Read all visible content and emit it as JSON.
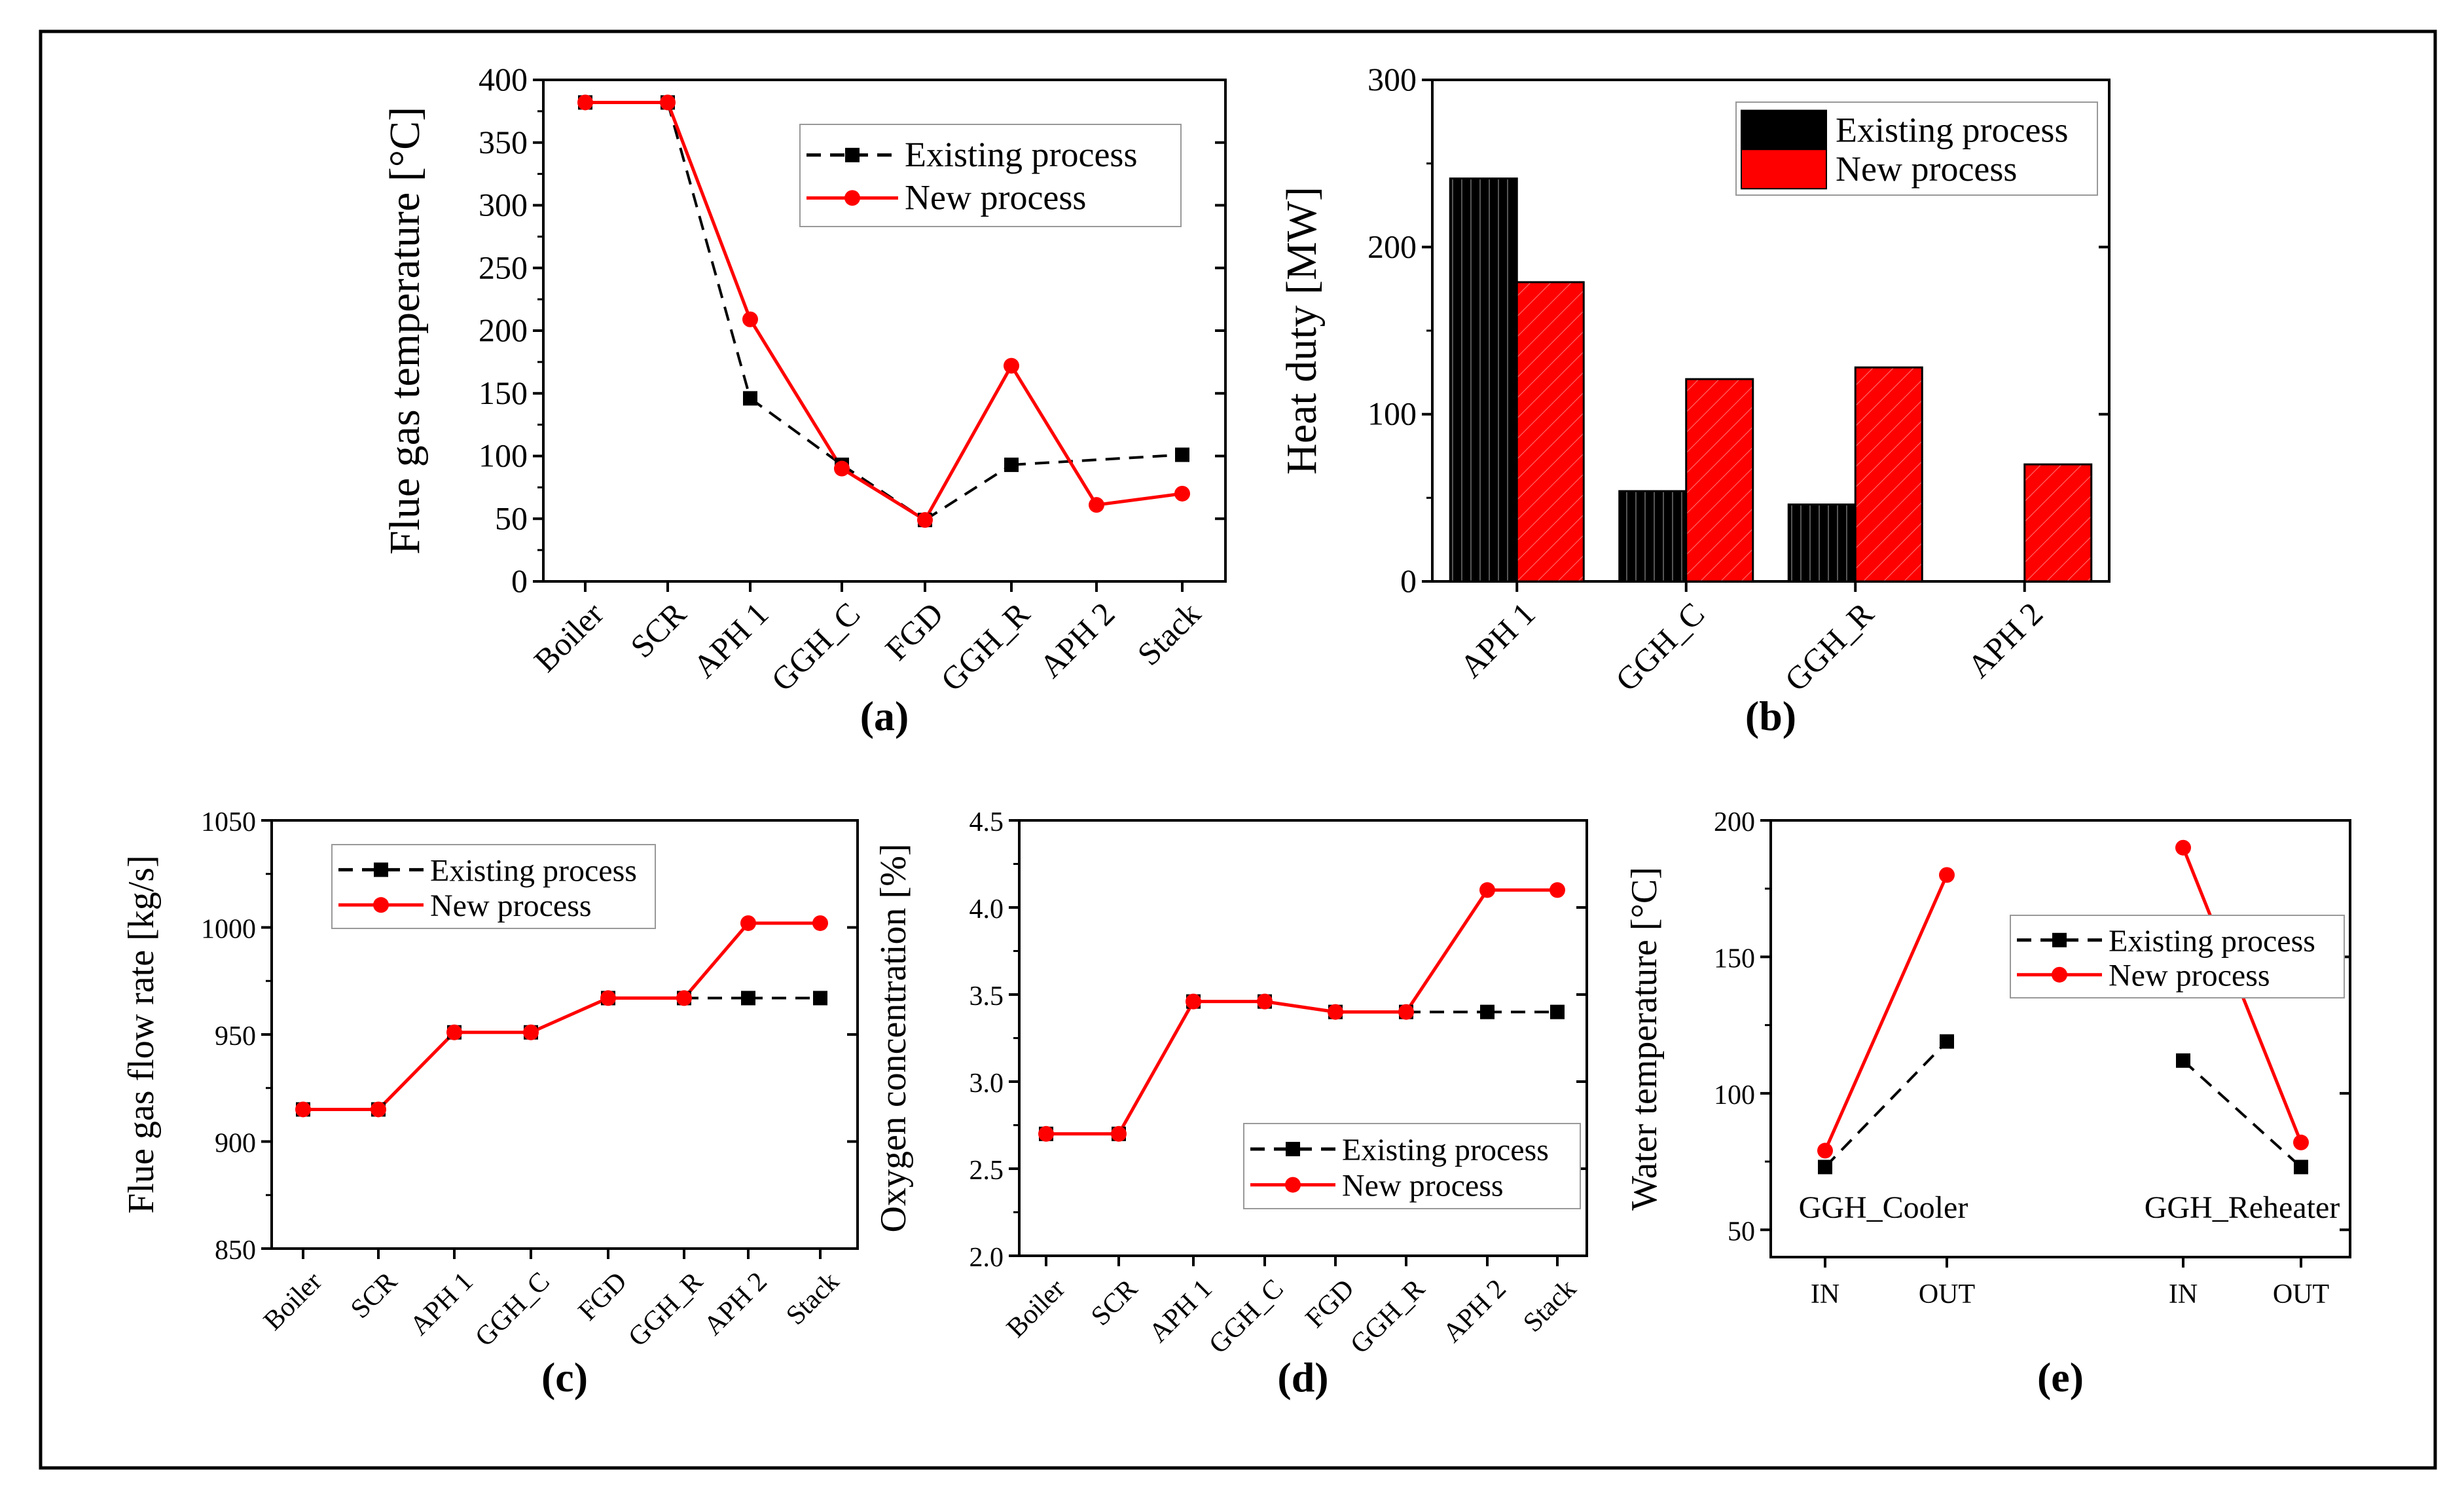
{
  "colors": {
    "existing": "#000000",
    "new": "#ff0000"
  },
  "chart_data": [
    {
      "id": "a",
      "type": "line",
      "panel_label": "(a)",
      "xlabel": "",
      "ylabel": "Flue gas temperature [°C]",
      "categories": [
        "Boiler",
        "SCR",
        "APH 1",
        "GGH_C",
        "FGD",
        "GGH_R",
        "APH 2",
        "Stack"
      ],
      "ylim": [
        0,
        400
      ],
      "yticks": [
        0,
        50,
        100,
        150,
        200,
        250,
        300,
        350,
        400
      ],
      "series": [
        {
          "name": "Existing process",
          "style": "dashed-square",
          "values": [
            382,
            382,
            146,
            93,
            49,
            93,
            null,
            101
          ],
          "connect": [
            [
              0,
              1
            ],
            [
              1,
              2
            ],
            [
              2,
              3
            ],
            [
              3,
              4
            ],
            [
              4,
              5
            ],
            [
              5,
              7
            ]
          ]
        },
        {
          "name": "New process",
          "style": "solid-circle",
          "values": [
            382,
            382,
            209,
            90,
            49,
            172,
            61,
            70
          ],
          "connect": [
            [
              0,
              1
            ],
            [
              1,
              2
            ],
            [
              2,
              3
            ],
            [
              3,
              4
            ],
            [
              4,
              5
            ],
            [
              5,
              6
            ],
            [
              6,
              7
            ]
          ]
        }
      ],
      "legend": [
        "Existing process",
        "New process"
      ],
      "legend_position": "top-right"
    },
    {
      "id": "b",
      "type": "bar",
      "panel_label": "(b)",
      "xlabel": "",
      "ylabel": "Heat duty [MW]",
      "categories": [
        "APH 1",
        "GGH_C",
        "GGH_R",
        "APH 2"
      ],
      "ylim": [
        0,
        300
      ],
      "yticks": [
        0,
        100,
        200,
        300
      ],
      "series": [
        {
          "name": "Existing process",
          "values": [
            241,
            54,
            46,
            0
          ]
        },
        {
          "name": "New process",
          "values": [
            179,
            121,
            128,
            70
          ]
        }
      ],
      "legend": [
        "Existing process",
        "New process"
      ],
      "legend_position": "top-right"
    },
    {
      "id": "c",
      "type": "line",
      "panel_label": "(c)",
      "xlabel": "",
      "ylabel": "Flue gas flow rate [kg/s]",
      "categories": [
        "Boiler",
        "SCR",
        "APH 1",
        "GGH_C",
        "FGD",
        "GGH_R",
        "APH 2",
        "Stack"
      ],
      "ylim": [
        850,
        1050
      ],
      "yticks": [
        850,
        900,
        950,
        1000,
        1050
      ],
      "series": [
        {
          "name": "Existing process",
          "style": "dashed-square",
          "values": [
            915,
            915,
            951,
            951,
            967,
            967,
            967,
            967
          ],
          "connect": [
            [
              5,
              6
            ],
            [
              6,
              7
            ]
          ]
        },
        {
          "name": "New process",
          "style": "solid",
          "values": [
            915,
            915,
            951,
            951,
            967,
            967,
            1002,
            1002
          ],
          "connect": [
            [
              0,
              1
            ],
            [
              1,
              2
            ],
            [
              2,
              3
            ],
            [
              3,
              4
            ],
            [
              4,
              5
            ],
            [
              5,
              6
            ],
            [
              6,
              7
            ]
          ]
        }
      ],
      "legend": [
        "Existing process",
        "New process"
      ],
      "legend_position": "top-left"
    },
    {
      "id": "d",
      "type": "line",
      "panel_label": "(d)",
      "xlabel": "",
      "ylabel": "Oxygen concentration [%]",
      "categories": [
        "Boiler",
        "SCR",
        "APH 1",
        "GGH_C",
        "FGD",
        "GGH_R",
        "APH 2",
        "Stack"
      ],
      "ylim": [
        2.0,
        4.5
      ],
      "yticks": [
        2.0,
        2.5,
        3.0,
        3.5,
        4.0,
        4.5
      ],
      "ytick_labels": [
        "2.0",
        "2.5",
        "3.0",
        "3.5",
        "4.0",
        "4.5"
      ],
      "series": [
        {
          "name": "Existing process",
          "style": "dashed-square",
          "values": [
            2.7,
            2.7,
            3.46,
            3.46,
            3.4,
            3.4,
            3.4,
            3.4
          ],
          "connect": [
            [
              5,
              6
            ],
            [
              6,
              7
            ]
          ]
        },
        {
          "name": "New process",
          "style": "solid",
          "values": [
            2.7,
            2.7,
            3.46,
            3.46,
            3.4,
            3.4,
            4.1,
            4.1
          ],
          "connect": [
            [
              0,
              1
            ],
            [
              1,
              2
            ],
            [
              2,
              3
            ],
            [
              3,
              4
            ],
            [
              4,
              5
            ],
            [
              5,
              6
            ],
            [
              6,
              7
            ]
          ]
        }
      ],
      "legend": [
        "Existing process",
        "New process"
      ],
      "legend_position": "bottom-right"
    },
    {
      "id": "e",
      "type": "line",
      "panel_label": "(e)",
      "xlabel": "",
      "ylabel": "Water temperature [°C]",
      "categories": [
        "IN",
        "OUT",
        "IN",
        "OUT"
      ],
      "group_labels": [
        "GGH_Cooler",
        "GGH_Reheater"
      ],
      "ylim": [
        40,
        200
      ],
      "yticks": [
        50,
        100,
        150,
        200
      ],
      "series": [
        {
          "name": "Existing process",
          "style": "dashed-square",
          "values": [
            73,
            119,
            112,
            73
          ],
          "connect": [
            [
              0,
              1
            ],
            [
              2,
              3
            ]
          ]
        },
        {
          "name": "New process",
          "style": "solid-circle",
          "values": [
            79,
            180,
            190,
            82
          ],
          "connect": [
            [
              0,
              1
            ],
            [
              2,
              3
            ]
          ]
        }
      ],
      "legend": [
        "Existing process",
        "New process"
      ],
      "legend_position": "middle-right"
    }
  ]
}
